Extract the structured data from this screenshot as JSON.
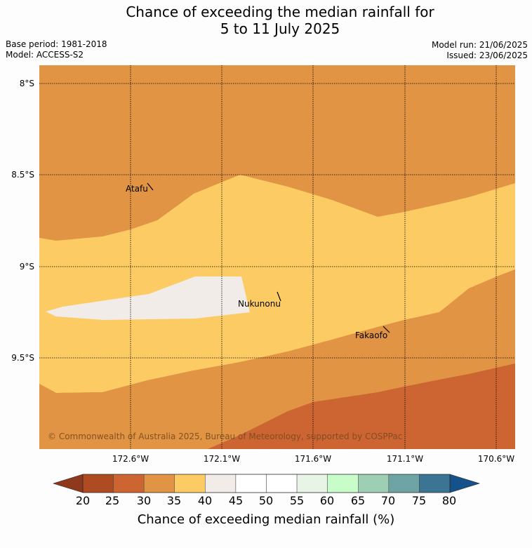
{
  "title": {
    "line1": "Chance of exceeding the median rainfall for",
    "line2": "5 to 11 July 2025"
  },
  "meta": {
    "base_period": "Base period: 1981-2018",
    "model": "Model: ACCESS-S2",
    "model_run": "Model run: 21/06/2025",
    "issued": "Issued: 23/06/2025"
  },
  "map": {
    "lat_labels": [
      "8°S",
      "8.5°S",
      "9°S",
      "9.5°S"
    ],
    "lon_labels": [
      "172.6°W",
      "172.1°W",
      "171.6°W",
      "171.1°W",
      "170.6°W"
    ],
    "places": [
      "Atafu",
      "Nukunonu",
      "Fakaofo"
    ],
    "copyright": "© Commonwealth of Australia 2025, Bureau of Meteorology, supported by COSPPac",
    "region_colors": {
      "p30_35": "#e09444",
      "p35_40": "#fdcb64",
      "p40_45": "#f1ece7",
      "p25_30": "#cc6532"
    }
  },
  "colorbar": {
    "ticks": [
      "20",
      "25",
      "30",
      "35",
      "40",
      "45",
      "50",
      "55",
      "60",
      "65",
      "70",
      "75",
      "80"
    ],
    "colors": [
      "#af4b21",
      "#cc6532",
      "#e09444",
      "#fdcb64",
      "#f1ece7",
      "#ffffff",
      "#ffffff",
      "#e8f5e6",
      "#c8fcc8",
      "#9ecfb4",
      "#6fa4a4",
      "#3c7494"
    ],
    "under_color": "#8f391c",
    "over_color": "#15518b",
    "label": "Chance of exceeding median rainfall (%)"
  }
}
